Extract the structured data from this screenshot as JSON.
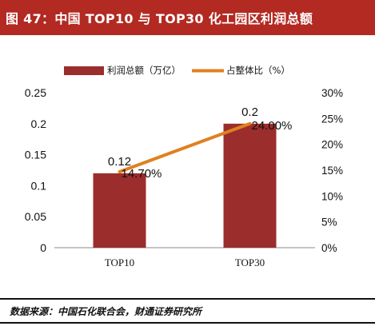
{
  "header": {
    "title": "图 47：中国 TOP10 与 TOP30 化工园区利润总额"
  },
  "footer": {
    "source": "数据来源：中国石化联合会，财通证券研究所"
  },
  "colors": {
    "title_bg": "#b22a22",
    "bar": "#9b2d2c",
    "line": "#e0801f",
    "text": "#111111"
  },
  "chart_data": {
    "type": "bar",
    "categories": [
      "TOP10",
      "TOP30"
    ],
    "series": [
      {
        "name": "利润总额（万亿）",
        "type": "bar",
        "axis": "left",
        "values": [
          0.12,
          0.2
        ],
        "labels": [
          "0.12",
          "0.2"
        ]
      },
      {
        "name": "占整体比（%）",
        "type": "line",
        "axis": "right",
        "values": [
          14.7,
          24.0
        ],
        "labels": [
          "14.70%",
          "24.00%"
        ]
      }
    ],
    "left_axis": {
      "ylim": [
        0,
        0.25
      ],
      "ticks": [
        0,
        0.05,
        0.1,
        0.15,
        0.2,
        0.25
      ],
      "tick_labels": [
        "0",
        "0.05",
        "0.1",
        "0.15",
        "0.2",
        "0.25"
      ]
    },
    "right_axis": {
      "ylim": [
        0,
        30
      ],
      "ticks": [
        0,
        5,
        10,
        15,
        20,
        25,
        30
      ],
      "tick_labels": [
        "0%",
        "5%",
        "10%",
        "15%",
        "20%",
        "25%",
        "30%"
      ]
    },
    "legend_position": "top",
    "grid": false
  }
}
